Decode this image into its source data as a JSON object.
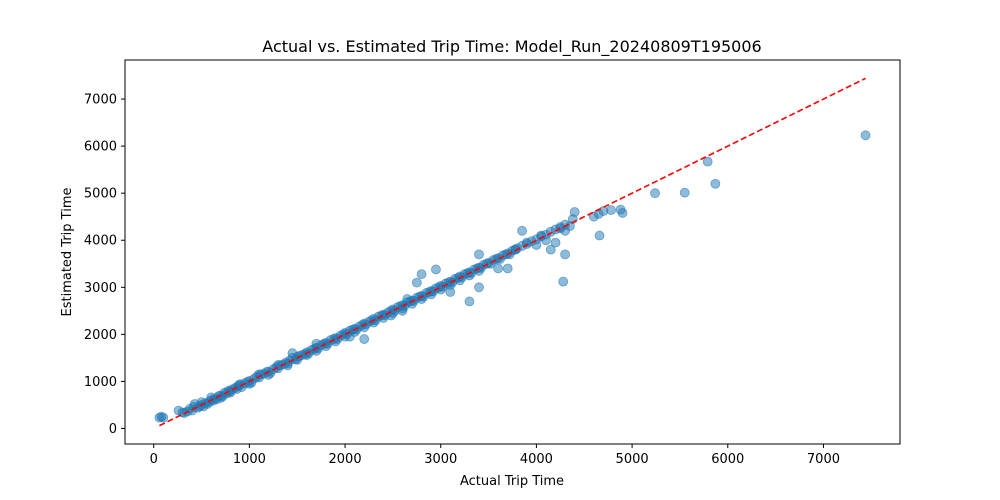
{
  "chart_data": {
    "type": "scatter",
    "title": "Actual vs. Estimated Trip Time: Model_Run_20240809T195006",
    "xlabel": "Actual Trip Time",
    "ylabel": "Estimated Trip Time",
    "xlim": [
      -300,
      7800
    ],
    "ylim": [
      -330,
      7830
    ],
    "xticks": [
      0,
      1000,
      2000,
      3000,
      4000,
      5000,
      6000,
      7000
    ],
    "yticks": [
      0,
      1000,
      2000,
      3000,
      4000,
      5000,
      6000,
      7000
    ],
    "grid": false,
    "point_color": "#1f77b4",
    "point_opacity": 0.5,
    "reference_line": {
      "x": [
        60,
        7440
      ],
      "y": [
        60,
        7440
      ],
      "color": "#ff0000",
      "style": "dashed"
    },
    "series": [
      {
        "points": [
          [
            60,
            230
          ],
          [
            80,
            250
          ],
          [
            100,
            230
          ],
          [
            260,
            380
          ],
          [
            300,
            340
          ],
          [
            320,
            330
          ],
          [
            350,
            360
          ],
          [
            380,
            420
          ],
          [
            400,
            380
          ],
          [
            420,
            460
          ],
          [
            430,
            520
          ],
          [
            460,
            440
          ],
          [
            480,
            470
          ],
          [
            500,
            500
          ],
          [
            520,
            470
          ],
          [
            540,
            540
          ],
          [
            560,
            520
          ],
          [
            580,
            560
          ],
          [
            600,
            600
          ],
          [
            620,
            590
          ],
          [
            640,
            640
          ],
          [
            660,
            620
          ],
          [
            680,
            690
          ],
          [
            700,
            700
          ],
          [
            720,
            680
          ],
          [
            740,
            760
          ],
          [
            760,
            740
          ],
          [
            780,
            800
          ],
          [
            800,
            790
          ],
          [
            820,
            830
          ],
          [
            850,
            860
          ],
          [
            870,
            840
          ],
          [
            880,
            900
          ],
          [
            900,
            920
          ],
          [
            920,
            880
          ],
          [
            950,
            960
          ],
          [
            980,
            990
          ],
          [
            1000,
            1010
          ],
          [
            1020,
            970
          ],
          [
            1050,
            1060
          ],
          [
            1080,
            1100
          ],
          [
            1100,
            1080
          ],
          [
            1120,
            1150
          ],
          [
            1150,
            1160
          ],
          [
            1180,
            1200
          ],
          [
            1200,
            1210
          ],
          [
            1220,
            1180
          ],
          [
            1250,
            1260
          ],
          [
            1280,
            1300
          ],
          [
            1300,
            1280
          ],
          [
            1320,
            1340
          ],
          [
            1350,
            1360
          ],
          [
            1380,
            1400
          ],
          [
            1400,
            1380
          ],
          [
            1420,
            1440
          ],
          [
            1450,
            1500
          ],
          [
            1480,
            1470
          ],
          [
            1500,
            1520
          ],
          [
            1520,
            1540
          ],
          [
            1550,
            1560
          ],
          [
            1580,
            1580
          ],
          [
            1600,
            1620
          ],
          [
            1620,
            1600
          ],
          [
            1650,
            1670
          ],
          [
            1680,
            1690
          ],
          [
            1700,
            1720
          ],
          [
            1720,
            1700
          ],
          [
            1750,
            1770
          ],
          [
            1780,
            1800
          ],
          [
            1800,
            1820
          ],
          [
            1820,
            1800
          ],
          [
            1850,
            1880
          ],
          [
            1880,
            1900
          ],
          [
            1900,
            1920
          ],
          [
            1920,
            1900
          ],
          [
            1950,
            1970
          ],
          [
            1980,
            2000
          ],
          [
            2000,
            2030
          ],
          [
            2020,
            2010
          ],
          [
            2050,
            2080
          ],
          [
            2080,
            2100
          ],
          [
            2100,
            2120
          ],
          [
            2120,
            2100
          ],
          [
            2150,
            2170
          ],
          [
            2180,
            2200
          ],
          [
            2200,
            2230
          ],
          [
            2220,
            2210
          ],
          [
            2250,
            2270
          ],
          [
            2280,
            2300
          ],
          [
            2300,
            2330
          ],
          [
            2320,
            2300
          ],
          [
            2350,
            2380
          ],
          [
            2380,
            2400
          ],
          [
            2400,
            2420
          ],
          [
            2420,
            2410
          ],
          [
            2450,
            2470
          ],
          [
            2480,
            2500
          ],
          [
            2500,
            2530
          ],
          [
            2520,
            2500
          ],
          [
            2550,
            2580
          ],
          [
            2580,
            2600
          ],
          [
            2600,
            2620
          ],
          [
            2620,
            2600
          ],
          [
            2650,
            2680
          ],
          [
            2680,
            2700
          ],
          [
            2700,
            2720
          ],
          [
            2720,
            2710
          ],
          [
            2750,
            2780
          ],
          [
            2780,
            2800
          ],
          [
            2800,
            2820
          ],
          [
            2820,
            2800
          ],
          [
            2850,
            2880
          ],
          [
            2880,
            2900
          ],
          [
            2900,
            2920
          ],
          [
            2920,
            2910
          ],
          [
            2950,
            2980
          ],
          [
            2980,
            3000
          ],
          [
            3000,
            3030
          ],
          [
            3020,
            3010
          ],
          [
            3050,
            3080
          ],
          [
            3080,
            3100
          ],
          [
            3100,
            3120
          ],
          [
            3120,
            3100
          ],
          [
            3150,
            3180
          ],
          [
            3180,
            3200
          ],
          [
            3200,
            3230
          ],
          [
            3220,
            3210
          ],
          [
            3250,
            3280
          ],
          [
            3280,
            3300
          ],
          [
            3300,
            3320
          ],
          [
            3320,
            3300
          ],
          [
            3350,
            3380
          ],
          [
            3380,
            3400
          ],
          [
            3400,
            3420
          ],
          [
            3420,
            3410
          ],
          [
            3450,
            3480
          ],
          [
            3480,
            3500
          ],
          [
            3500,
            3520
          ],
          [
            3520,
            3500
          ],
          [
            3550,
            3580
          ],
          [
            3580,
            3600
          ],
          [
            3600,
            3620
          ],
          [
            3620,
            3600
          ],
          [
            3650,
            3680
          ],
          [
            3680,
            3700
          ],
          [
            3700,
            3720
          ],
          [
            3720,
            3700
          ],
          [
            3750,
            3780
          ],
          [
            3780,
            3800
          ],
          [
            3800,
            3830
          ],
          [
            3850,
            3880
          ],
          [
            3900,
            3920
          ],
          [
            3950,
            3980
          ],
          [
            4000,
            4020
          ],
          [
            4050,
            4080
          ],
          [
            4100,
            4120
          ],
          [
            4150,
            4180
          ],
          [
            4200,
            4230
          ],
          [
            4250,
            4280
          ],
          [
            4300,
            4330
          ],
          [
            500,
            560
          ],
          [
            600,
            660
          ],
          [
            700,
            650
          ],
          [
            800,
            760
          ],
          [
            900,
            940
          ],
          [
            1000,
            950
          ],
          [
            1100,
            1150
          ],
          [
            1200,
            1140
          ],
          [
            1300,
            1350
          ],
          [
            1400,
            1340
          ],
          [
            1500,
            1460
          ],
          [
            1600,
            1560
          ],
          [
            1700,
            1650
          ],
          [
            1800,
            1750
          ],
          [
            1900,
            1850
          ],
          [
            2000,
            1950
          ],
          [
            2100,
            2050
          ],
          [
            2200,
            2150
          ],
          [
            2300,
            2250
          ],
          [
            2400,
            2350
          ],
          [
            2500,
            2450
          ],
          [
            2600,
            2550
          ],
          [
            2700,
            2650
          ],
          [
            2800,
            2750
          ],
          [
            2900,
            2850
          ],
          [
            3000,
            2950
          ],
          [
            3100,
            3050
          ],
          [
            3200,
            3150
          ],
          [
            3300,
            3250
          ],
          [
            3400,
            3350
          ],
          [
            1450,
            1600
          ],
          [
            1700,
            1800
          ],
          [
            2050,
            1950
          ],
          [
            2200,
            1900
          ],
          [
            2480,
            2400
          ],
          [
            2600,
            2500
          ],
          [
            2650,
            2750
          ],
          [
            2750,
            3100
          ],
          [
            2800,
            3280
          ],
          [
            2950,
            3380
          ],
          [
            3100,
            2900
          ],
          [
            3300,
            2700
          ],
          [
            3400,
            3000
          ],
          [
            3400,
            3700
          ],
          [
            3600,
            3400
          ],
          [
            3700,
            3400
          ],
          [
            3780,
            3800
          ],
          [
            3850,
            4200
          ],
          [
            3900,
            3950
          ],
          [
            4000,
            3900
          ],
          [
            4050,
            4100
          ],
          [
            4100,
            4000
          ],
          [
            4150,
            3800
          ],
          [
            4200,
            3950
          ],
          [
            4250,
            4250
          ],
          [
            4300,
            3700
          ],
          [
            4300,
            4200
          ],
          [
            4350,
            4300
          ],
          [
            4380,
            4450
          ],
          [
            4400,
            4600
          ],
          [
            4280,
            3120
          ],
          [
            4600,
            4500
          ],
          [
            4650,
            4560
          ],
          [
            4660,
            4100
          ],
          [
            4700,
            4620
          ],
          [
            4780,
            4640
          ],
          [
            4880,
            4650
          ],
          [
            4900,
            4580
          ],
          [
            5240,
            5000
          ],
          [
            5550,
            5010
          ],
          [
            5790,
            5670
          ],
          [
            5870,
            5200
          ],
          [
            7440,
            6230
          ]
        ]
      }
    ]
  }
}
